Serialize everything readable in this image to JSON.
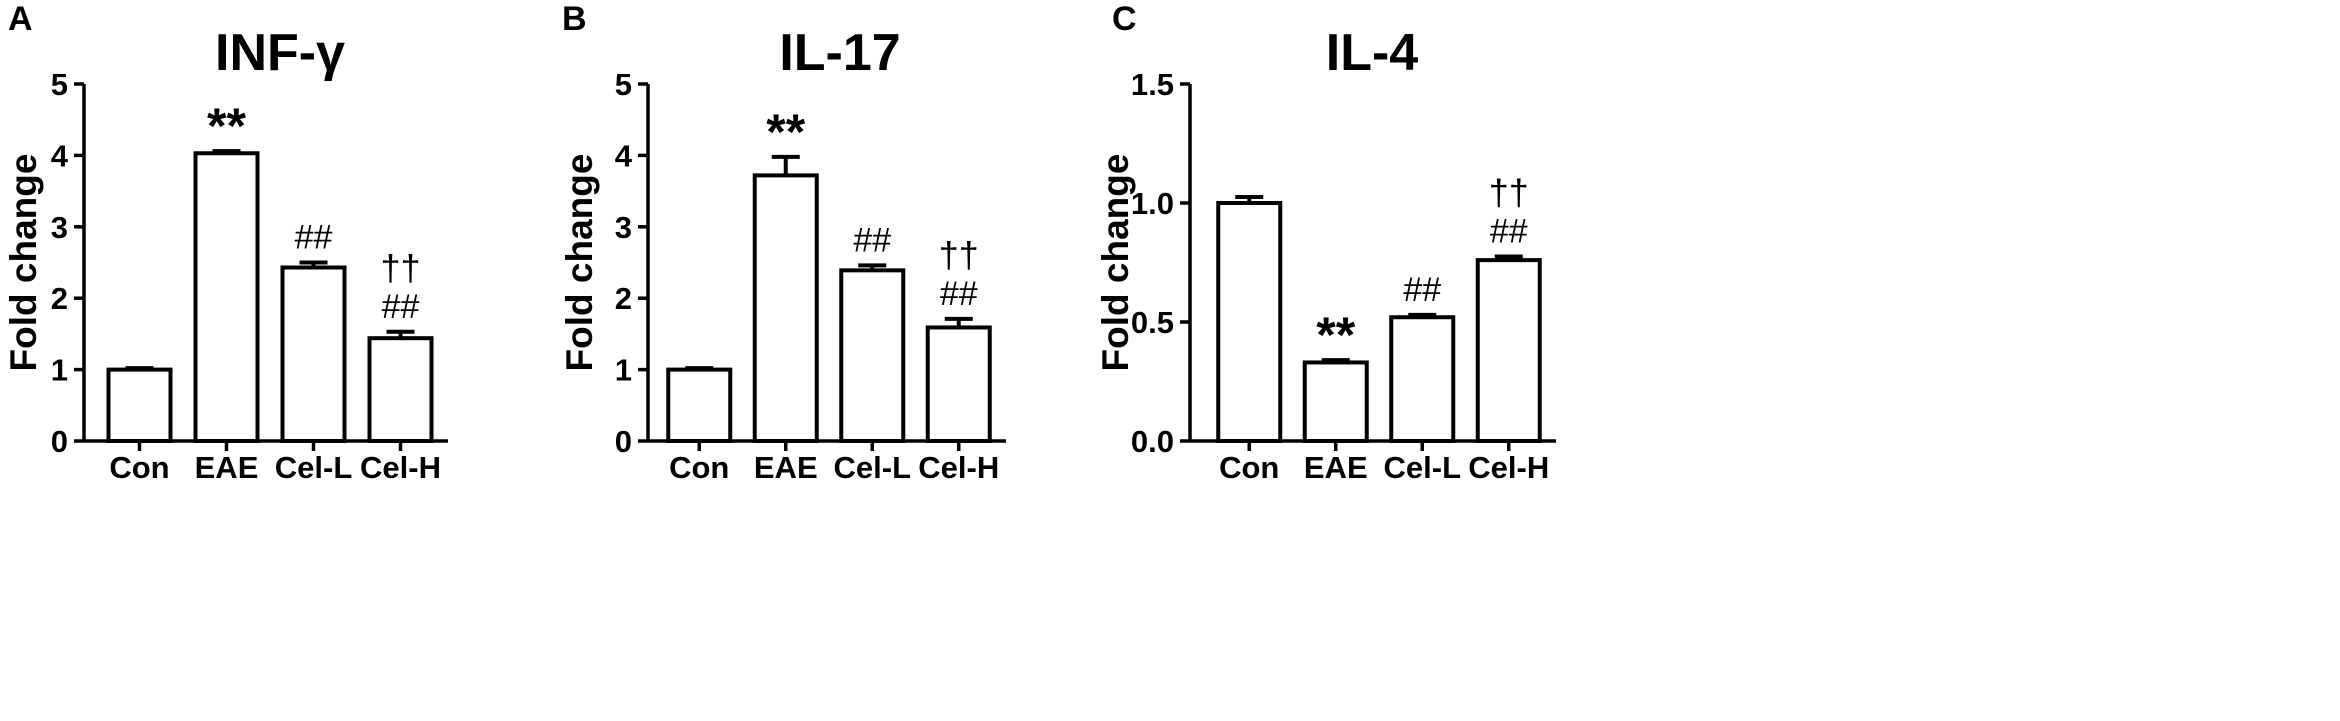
{
  "chart_data": [
    {
      "panel": "A",
      "type": "bar",
      "title": "INF-γ",
      "xlabel": "",
      "ylabel": "Fold change",
      "ylim": [
        0,
        5
      ],
      "yticks": [
        "0",
        "1",
        "2",
        "3",
        "4",
        "5"
      ],
      "yticks_values": [
        0,
        1,
        2,
        3,
        4,
        5
      ],
      "categories": [
        "Con",
        "EAE",
        "Cel-L",
        "Cel-H"
      ],
      "values": [
        1.0,
        4.03,
        2.43,
        1.44
      ],
      "errors": [
        0.02,
        0.03,
        0.07,
        0.09
      ],
      "annotations": [
        [],
        [
          "**"
        ],
        [
          "##"
        ],
        [
          "##",
          "††"
        ]
      ],
      "grid": false,
      "legend": "none"
    },
    {
      "panel": "B",
      "type": "bar",
      "title": "IL-17",
      "xlabel": "",
      "ylabel": "Fold change",
      "ylim": [
        0,
        5
      ],
      "yticks": [
        "0",
        "1",
        "2",
        "3",
        "4",
        "5"
      ],
      "yticks_values": [
        0,
        1,
        2,
        3,
        4,
        5
      ],
      "categories": [
        "Con",
        "EAE",
        "Cel-L",
        "Cel-H"
      ],
      "values": [
        1.0,
        3.72,
        2.39,
        1.59
      ],
      "errors": [
        0.02,
        0.26,
        0.07,
        0.12
      ],
      "annotations": [
        [],
        [
          "**"
        ],
        [
          "##"
        ],
        [
          "##",
          "††"
        ]
      ],
      "grid": false,
      "legend": "none"
    },
    {
      "panel": "C",
      "type": "bar",
      "title": "IL-4",
      "xlabel": "",
      "ylabel": "Fold change",
      "ylim": [
        0,
        1.5
      ],
      "yticks": [
        "0.0",
        "0.5",
        "1.0",
        "1.5"
      ],
      "yticks_values": [
        0,
        0.5,
        1.0,
        1.5
      ],
      "categories": [
        "Con",
        "EAE",
        "Cel-L",
        "Cel-H"
      ],
      "values": [
        1.0,
        0.33,
        0.52,
        0.76
      ],
      "errors": [
        0.025,
        0.01,
        0.01,
        0.015
      ],
      "annotations": [
        [],
        [
          "**"
        ],
        [
          "##"
        ],
        [
          "##",
          "††"
        ]
      ],
      "grid": false,
      "legend": "none"
    }
  ]
}
